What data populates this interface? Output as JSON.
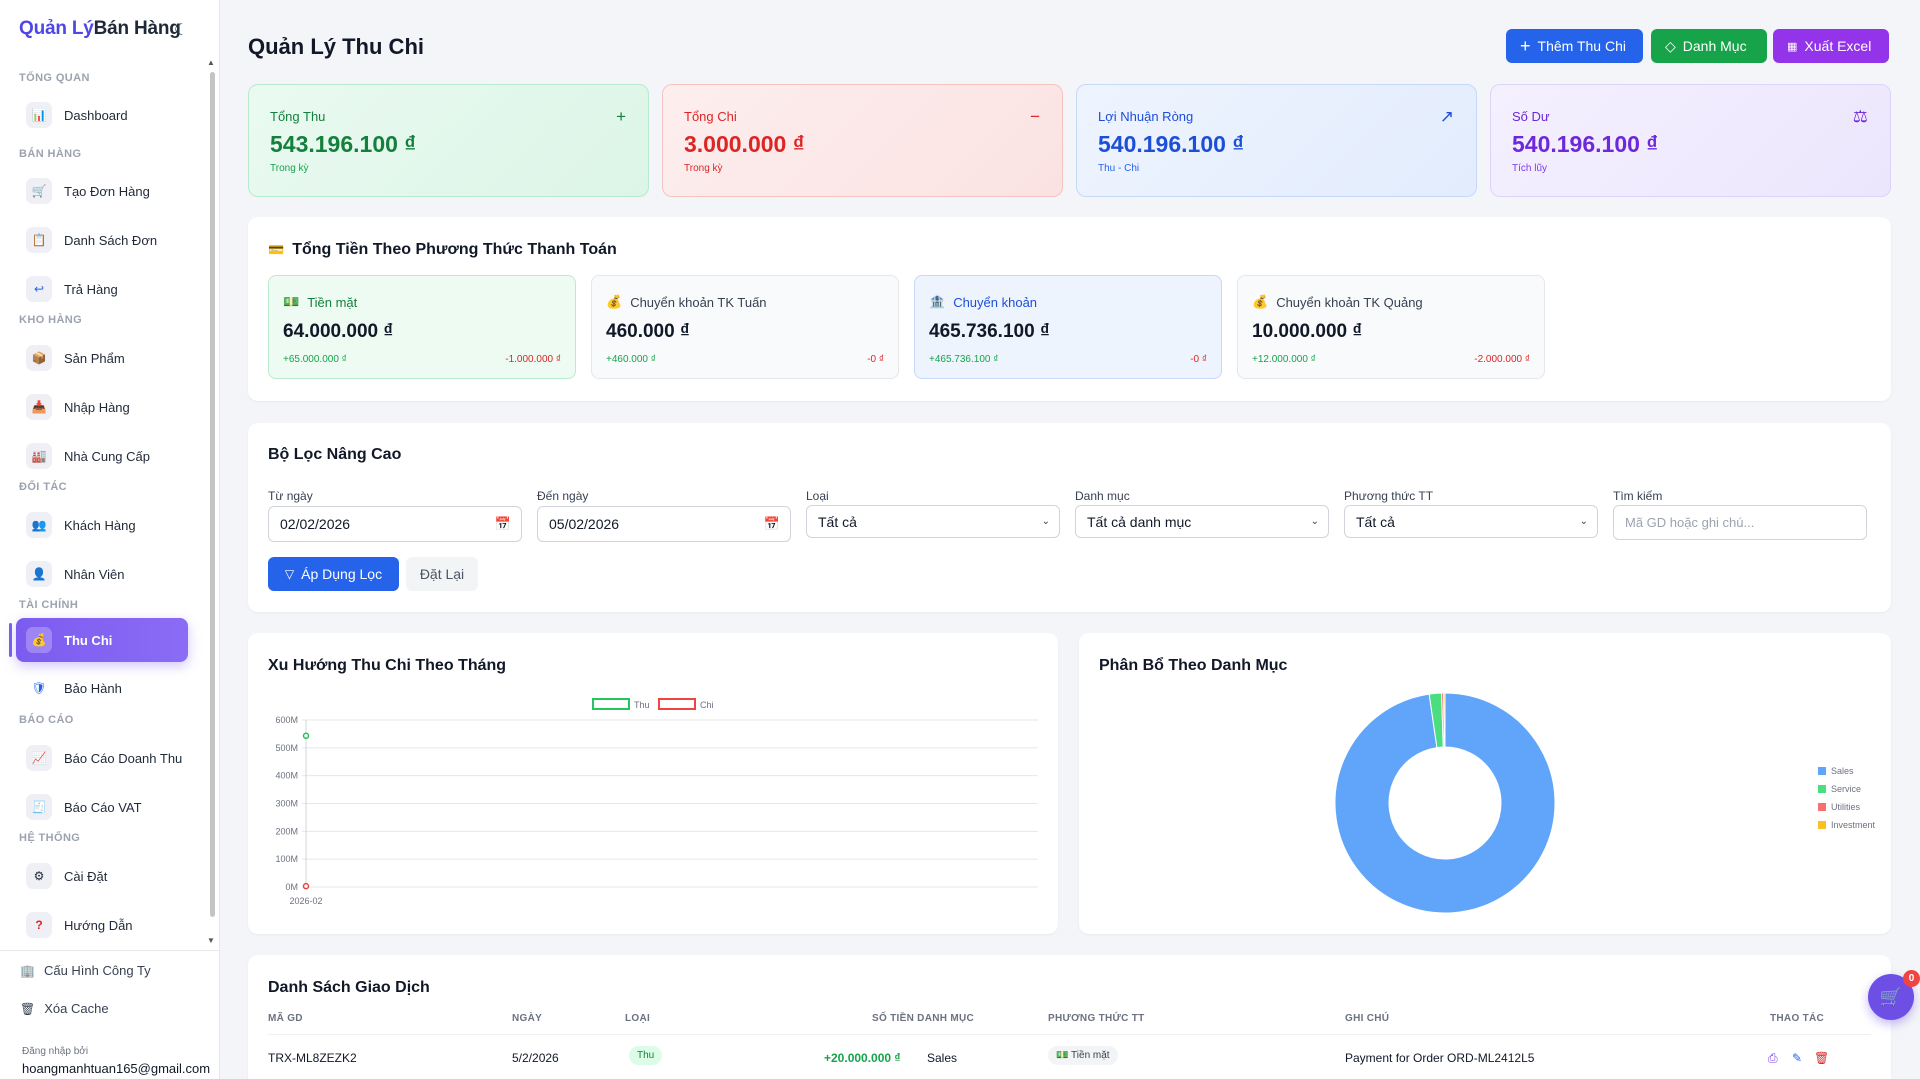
{
  "brand": {
    "part1": "Quản Lý",
    "part2": "Bán Hàng",
    "theme_icon": "moon-icon"
  },
  "sidebar": {
    "sections": [
      "Tổng Quan",
      "Bán Hàng",
      "Kho Hàng",
      "Đối Tác",
      "Tài Chính",
      "Báo Cáo",
      "Hệ Thống"
    ],
    "items": [
      {
        "label": "Dashboard",
        "icon": "chart-icon"
      },
      {
        "label": "Tạo Đơn Hàng",
        "icon": "cart-icon"
      },
      {
        "label": "Danh Sách Đơn",
        "icon": "clipboard-icon"
      },
      {
        "label": "Trả Hàng",
        "icon": "return-icon"
      },
      {
        "label": "Sản Phẩm",
        "icon": "product-icon"
      },
      {
        "label": "Nhập Hàng",
        "icon": "import-icon"
      },
      {
        "label": "Nhà Cung Cấp",
        "icon": "factory-icon"
      },
      {
        "label": "Khách Hàng",
        "icon": "customers-icon"
      },
      {
        "label": "Nhân Viên",
        "icon": "employee-icon"
      },
      {
        "label": "Thu Chi",
        "icon": "money-bag-icon"
      },
      {
        "label": "Bảo Hành",
        "icon": "shield-icon"
      },
      {
        "label": "Báo Cáo Doanh Thu",
        "icon": "line-chart-icon"
      },
      {
        "label": "Báo Cáo VAT",
        "icon": "receipt-icon"
      },
      {
        "label": "Cài Đặt",
        "icon": "gear-icon"
      },
      {
        "label": "Hướng Dẫn",
        "icon": "question-icon"
      }
    ],
    "bottom": {
      "company": "Cấu Hình Công Ty",
      "cache": "Xóa Cache",
      "logged_in_label": "Đăng nhập bởi",
      "email": "hoangmanhtuan165@gmail.com"
    }
  },
  "header": {
    "title": "Quản Lý Thu Chi",
    "add_button": "Thêm Thu Chi",
    "category_button": "Danh Mục",
    "export_button": "Xuất Excel"
  },
  "stats": [
    {
      "label": "Tổng Thu",
      "value": "543.196.100 ₫",
      "sub": "Trong kỳ",
      "icon": "+"
    },
    {
      "label": "Tổng Chi",
      "value": "3.000.000 ₫",
      "sub": "Trong kỳ",
      "icon": "−"
    },
    {
      "label": "Lợi Nhuận Ròng",
      "value": "540.196.100 ₫",
      "sub": "Thu - Chi",
      "icon": "↗"
    },
    {
      "label": "Số Dư",
      "value": "540.196.100 ₫",
      "sub": "Tích lũy",
      "icon": "⚖"
    }
  ],
  "payments": {
    "title": "Tổng Tiền Theo Phương Thức Thanh Toán",
    "methods": [
      {
        "name": "Tiền mặt",
        "amount": "64.000.000 ₫",
        "in": "+65.000.000 ₫",
        "out": "-1.000.000 ₫",
        "icon": "💵"
      },
      {
        "name": "Chuyển khoản TK Tuấn",
        "amount": "460.000 ₫",
        "in": "+460.000 ₫",
        "out": "-0 ₫",
        "icon": "💰"
      },
      {
        "name": "Chuyển khoản",
        "amount": "465.736.100 ₫",
        "in": "+465.736.100 ₫",
        "out": "-0 ₫",
        "icon": "🏦"
      },
      {
        "name": "Chuyển khoản TK Quảng",
        "amount": "10.000.000 ₫",
        "in": "+12.000.000 ₫",
        "out": "-2.000.000 ₫",
        "icon": "💰"
      }
    ]
  },
  "filter": {
    "title": "Bộ Lọc Nâng Cao",
    "from_label": "Từ ngày",
    "from_value": "02/02/2026",
    "to_label": "Đến ngày",
    "to_value": "05/02/2026",
    "type_label": "Loại",
    "type_value": "Tất cả",
    "category_label": "Danh mục",
    "category_value": "Tất cả danh mục",
    "method_label": "Phương thức TT",
    "method_value": "Tất cả",
    "search_label": "Tìm kiếm",
    "search_placeholder": "Mã GD hoặc ghi chú...",
    "apply": "Áp Dụng Lọc",
    "reset": "Đặt Lại"
  },
  "trend_chart": {
    "title": "Xu Hướng Thu Chi Theo Tháng"
  },
  "pie_chart": {
    "title": "Phân Bổ Theo Danh Mục"
  },
  "chart_data": [
    {
      "type": "line",
      "title": "Xu Hướng Thu Chi Theo Tháng",
      "categories": [
        "2026-02"
      ],
      "series": [
        {
          "name": "Thu",
          "color": "#22c55e",
          "values": [
            543196100
          ]
        },
        {
          "name": "Chi",
          "color": "#ef4444",
          "values": [
            3000000
          ]
        }
      ],
      "ylim": [
        0,
        600000000
      ],
      "yticks": [
        "600M",
        "500M",
        "400M",
        "300M",
        "200M",
        "100M",
        "0M"
      ],
      "legend": "top",
      "grid": true
    },
    {
      "type": "pie",
      "title": "Phân Bổ Theo Danh Mục",
      "donut": true,
      "labels": [
        "Sales",
        "Service",
        "Utilities",
        "Investment"
      ],
      "values": [
        97.7,
        1.8,
        0.3,
        0.2
      ],
      "colors": [
        "#60a5fa",
        "#4ade80",
        "#f87171",
        "#fbbf24"
      ],
      "legend": "right"
    }
  ],
  "transactions": {
    "title": "Danh Sách Giao Dịch",
    "columns": [
      "Mã GD",
      "Ngày",
      "Loại",
      "Số Tiền Danh Mục",
      "Phương Thức TT",
      "Ghi Chú",
      "Thao Tác"
    ],
    "rows": [
      {
        "id": "TRX-ML8ZEZK2",
        "date": "5/2/2026",
        "type": "Thu",
        "amount": "+20.000.000 ₫",
        "category": "Sales",
        "method": "💵 Tiền mặt",
        "note": "Payment for Order ORD-ML2412L5"
      }
    ]
  },
  "cart": {
    "count": "0"
  }
}
